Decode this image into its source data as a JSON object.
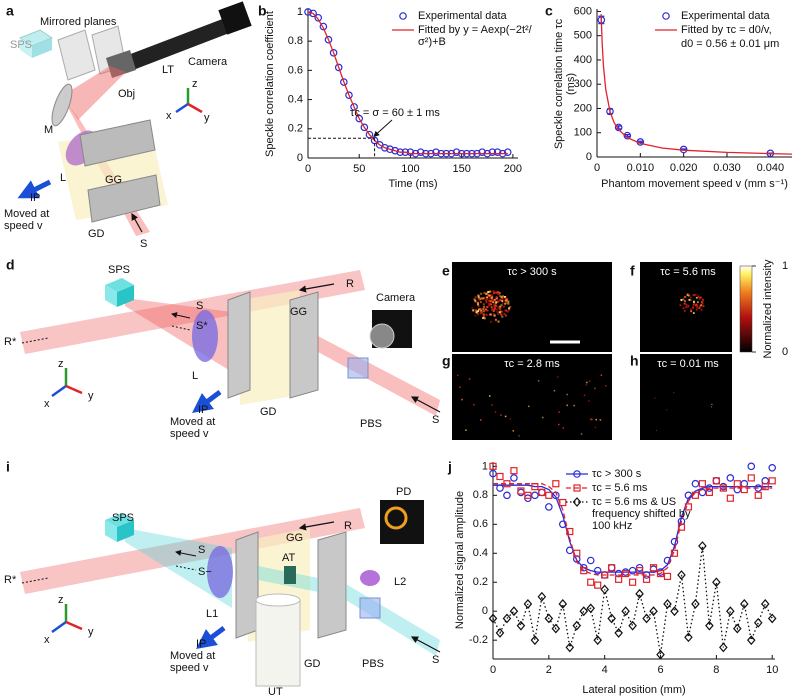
{
  "panel_labels": [
    "a",
    "b",
    "c",
    "d",
    "e",
    "f",
    "g",
    "h",
    "i",
    "j"
  ],
  "diagrams": {
    "a": [
      "SPS",
      "Mirrored planes",
      "Camera",
      "Obj",
      "LT",
      "M",
      "L",
      "GG",
      "IP",
      "Moved at speed v",
      "GD",
      "S",
      "z",
      "x",
      "y"
    ],
    "d": [
      "SPS",
      "R",
      "R*",
      "S",
      "S*",
      "L",
      "GG",
      "Camera",
      "PBS",
      "S",
      "IP",
      "Moved at speed v",
      "GD",
      "z",
      "x",
      "y"
    ],
    "i": [
      "SPS",
      "R",
      "R*",
      "S",
      "S−",
      "L1",
      "GG",
      "AT",
      "PD",
      "L2",
      "PBS",
      "S",
      "IP",
      "Moved at speed v",
      "UT",
      "GD",
      "z",
      "x",
      "y"
    ]
  },
  "images": {
    "titles": [
      "τc > 300 s",
      "τc = 5.6 ms",
      "τc = 2.8 ms",
      "τc = 0.01 ms"
    ],
    "colorbar": {
      "label": "Normalized intensity",
      "ticks": [
        0,
        1
      ]
    }
  },
  "chart_data": [
    {
      "type": "scatter",
      "ylabel": "Speckle correlation coefficient",
      "xlabel": "Time (ms)",
      "x": [
        0,
        5,
        10,
        15,
        20,
        25,
        30,
        35,
        40,
        45,
        50,
        55,
        60,
        65,
        70,
        75,
        80,
        85,
        90,
        95,
        100,
        105,
        110,
        115,
        120,
        125,
        130,
        135,
        140,
        145,
        150,
        155,
        160,
        165,
        170,
        175,
        180,
        185,
        190,
        195
      ],
      "series": [
        {
          "name": "Experimental data",
          "color": "#2b2bd6",
          "marker": "circle",
          "values": [
            1.0,
            0.99,
            0.96,
            0.9,
            0.81,
            0.72,
            0.62,
            0.52,
            0.43,
            0.35,
            0.27,
            0.21,
            0.16,
            0.12,
            0.09,
            0.07,
            0.06,
            0.05,
            0.04,
            0.04,
            0.04,
            0.03,
            0.04,
            0.03,
            0.03,
            0.04,
            0.03,
            0.03,
            0.03,
            0.04,
            0.03,
            0.03,
            0.03,
            0.03,
            0.04,
            0.03,
            0.04,
            0.04,
            0.03,
            0.04
          ]
        },
        {
          "name": "Fitted by y = Aexp(−2t²/σ²)+B",
          "color": "#e0232b",
          "line": "solid",
          "values": [
            1.0,
            0.99,
            0.95,
            0.89,
            0.81,
            0.72,
            0.62,
            0.52,
            0.43,
            0.35,
            0.27,
            0.21,
            0.16,
            0.12,
            0.09,
            0.07,
            0.06,
            0.05,
            0.04,
            0.04,
            0.03,
            0.03,
            0.03,
            0.03,
            0.03,
            0.03,
            0.03,
            0.03,
            0.03,
            0.03,
            0.03,
            0.03,
            0.03,
            0.03,
            0.03,
            0.03,
            0.03,
            0.03,
            0.03,
            0.03
          ]
        }
      ],
      "xlim": [
        0,
        205
      ],
      "ylim": [
        0,
        1.02
      ],
      "xticks": [
        0,
        50,
        100,
        150,
        200
      ],
      "yticks": [
        0,
        0.2,
        0.4,
        0.6,
        0.8,
        1
      ],
      "annotation": "τc = σ = 60 ± 1 ms",
      "reference_point": [
        65,
        0.135
      ],
      "legend": "upper right"
    },
    {
      "type": "scatter",
      "ylabel": "Speckle correlation time τc (ms)",
      "xlabel": "Phantom movement speed v (mm s⁻¹)",
      "series": [
        {
          "name": "Experimental data",
          "color": "#2b2bd6",
          "marker": "circle",
          "x": [
            0.001,
            0.003,
            0.005,
            0.007,
            0.01,
            0.02,
            0.04
          ],
          "values": [
            565,
            188,
            122,
            88,
            62,
            31,
            15
          ],
          "errors": [
            15,
            10,
            6,
            4,
            3,
            2,
            1
          ]
        },
        {
          "name": "Fitted by τc = d0/v,",
          "note": "d0 = 0.56 ± 0.01 μm",
          "color": "#e0232b",
          "line": "solid",
          "x": [
            0.00095,
            0.0012,
            0.0015,
            0.002,
            0.003,
            0.004,
            0.005,
            0.007,
            0.01,
            0.015,
            0.02,
            0.03,
            0.04,
            0.045
          ],
          "values": [
            589,
            467,
            373,
            280,
            187,
            140,
            112,
            80,
            56,
            37,
            28,
            19,
            14,
            12
          ]
        }
      ],
      "xlim": [
        0,
        0.045
      ],
      "ylim": [
        0,
        610
      ],
      "xticks": [
        0,
        {
          "value": 0.01,
          "label": "0.010"
        },
        {
          "value": 0.02,
          "label": "0.020"
        },
        {
          "value": 0.03,
          "label": "0.030"
        },
        {
          "value": 0.04,
          "label": "0.040"
        }
      ],
      "yticks": [
        0,
        100,
        200,
        300,
        400,
        500,
        600
      ],
      "legend": "upper right"
    },
    {
      "type": "scatter",
      "ylabel": "Normalized signal amplitude",
      "xlabel": "Lateral position (mm)",
      "x": [
        0,
        0.25,
        0.5,
        0.75,
        1,
        1.25,
        1.5,
        1.75,
        2,
        2.25,
        2.5,
        2.75,
        3,
        3.25,
        3.5,
        3.75,
        4,
        4.25,
        4.5,
        4.75,
        5,
        5.25,
        5.5,
        5.75,
        6,
        6.25,
        6.5,
        6.75,
        7,
        7.25,
        7.5,
        7.75,
        8,
        8.25,
        8.5,
        8.75,
        9,
        9.25,
        9.5,
        9.75,
        10
      ],
      "series": [
        {
          "name": "τc > 300 s",
          "color": "#2b2bd6",
          "marker": "circle",
          "line": "solid",
          "values": [
            0.95,
            0.85,
            0.8,
            0.92,
            0.82,
            0.78,
            0.8,
            0.82,
            0.72,
            0.8,
            0.6,
            0.42,
            0.36,
            0.3,
            0.35,
            0.28,
            0.25,
            0.3,
            0.26,
            0.27,
            0.28,
            0.3,
            0.25,
            0.29,
            0.27,
            0.35,
            0.48,
            0.62,
            0.8,
            0.88,
            0.82,
            0.85,
            0.9,
            0.86,
            0.92,
            0.84,
            0.88,
            1.0,
            0.85,
            0.9,
            0.99
          ],
          "fit_values": [
            0.87,
            0.87,
            0.87,
            0.87,
            0.87,
            0.87,
            0.86,
            0.86,
            0.84,
            0.79,
            0.66,
            0.48,
            0.35,
            0.3,
            0.28,
            0.27,
            0.27,
            0.27,
            0.27,
            0.27,
            0.27,
            0.27,
            0.27,
            0.27,
            0.28,
            0.32,
            0.45,
            0.65,
            0.78,
            0.83,
            0.85,
            0.86,
            0.86,
            0.86,
            0.86,
            0.86,
            0.86,
            0.86,
            0.86,
            0.86,
            0.86
          ]
        },
        {
          "name": "τc = 5.6 ms",
          "color": "#e0232b",
          "marker": "square",
          "line": "dashed",
          "values": [
            1.0,
            0.93,
            0.88,
            0.97,
            0.83,
            0.8,
            0.86,
            0.82,
            0.8,
            0.88,
            0.75,
            0.55,
            0.4,
            0.28,
            0.2,
            0.18,
            0.25,
            0.3,
            0.22,
            0.26,
            0.2,
            0.28,
            0.22,
            0.3,
            0.26,
            0.24,
            0.4,
            0.58,
            0.72,
            0.8,
            0.88,
            0.82,
            0.9,
            0.85,
            0.78,
            0.88,
            0.84,
            0.92,
            0.8,
            0.86,
            0.9
          ],
          "fit_values": [
            0.88,
            0.88,
            0.88,
            0.88,
            0.88,
            0.88,
            0.88,
            0.88,
            0.86,
            0.82,
            0.7,
            0.5,
            0.34,
            0.28,
            0.26,
            0.25,
            0.25,
            0.25,
            0.25,
            0.25,
            0.25,
            0.25,
            0.25,
            0.25,
            0.26,
            0.3,
            0.42,
            0.62,
            0.76,
            0.82,
            0.84,
            0.85,
            0.85,
            0.85,
            0.85,
            0.85,
            0.85,
            0.85,
            0.85,
            0.85,
            0.85
          ]
        },
        {
          "name": "τc = 5.6 ms & US frequency shifted by 100 kHz",
          "color": "#111111",
          "marker": "diamond",
          "line": "dotted",
          "values": [
            -0.05,
            -0.15,
            -0.05,
            0.0,
            -0.1,
            0.05,
            -0.2,
            0.1,
            -0.05,
            -0.12,
            0.05,
            -0.25,
            -0.1,
            0.0,
            0.02,
            -0.2,
            0.15,
            -0.05,
            -0.15,
            0.0,
            -0.1,
            0.12,
            -0.05,
            0.0,
            -0.3,
            0.05,
            0.0,
            0.25,
            -0.18,
            0.05,
            0.45,
            -0.1,
            0.2,
            -0.25,
            0.0,
            -0.12,
            0.05,
            -0.2,
            -0.08,
            0.05,
            -0.05
          ]
        }
      ],
      "xlim": [
        0,
        10.1
      ],
      "ylim": [
        -0.33,
        1.03
      ],
      "xticks": [
        0,
        2,
        4,
        6,
        8,
        10
      ],
      "yticks": [
        -0.2,
        0,
        0.2,
        0.4,
        0.6,
        0.8,
        1
      ],
      "legend": "upper center"
    }
  ]
}
